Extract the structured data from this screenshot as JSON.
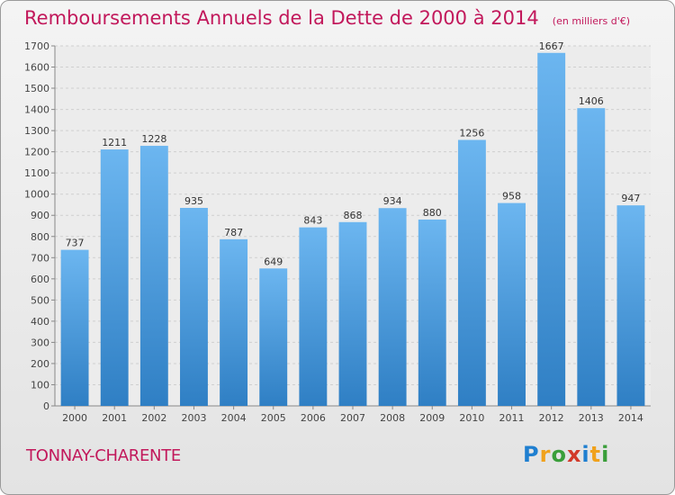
{
  "title": "Remboursements Annuels de la Dette de 2000 à 2014",
  "subtitle": "(en milliers d'€)",
  "place": "TONNAY-CHARENTE",
  "logo": {
    "letters": [
      "P",
      "r",
      "o",
      "x",
      "i",
      "t",
      "i"
    ],
    "colors": [
      "#1f7fd0",
      "#f0a21c",
      "#3a9e3a",
      "#d23a2a",
      "#1f7fd0",
      "#f0a21c",
      "#3a9e3a"
    ]
  },
  "colors": {
    "bar_top": "#6cb6f0",
    "bar_bottom": "#2f7fc4",
    "title": "#c2185b"
  },
  "chart_data": {
    "type": "bar",
    "categories": [
      "2000",
      "2001",
      "2002",
      "2003",
      "2004",
      "2005",
      "2006",
      "2007",
      "2008",
      "2009",
      "2010",
      "2011",
      "2012",
      "2013",
      "2014"
    ],
    "values": [
      737,
      1211,
      1228,
      935,
      787,
      649,
      843,
      868,
      934,
      880,
      1256,
      958,
      1667,
      1406,
      947
    ],
    "ylim": [
      0,
      1700
    ],
    "yticks": [
      0,
      100,
      200,
      300,
      400,
      500,
      600,
      700,
      800,
      900,
      1000,
      1100,
      1200,
      1300,
      1400,
      1500,
      1600,
      1700
    ],
    "grid": true
  }
}
